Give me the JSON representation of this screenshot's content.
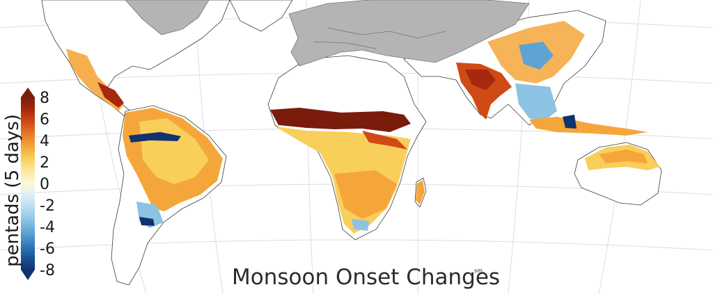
{
  "map": {
    "title": "Monsoon Onset Changes",
    "title_mark": "sm"
  },
  "legend": {
    "unit_label": "pentads (5 days)",
    "ticks": [
      "8",
      "6",
      "4",
      "2",
      "0",
      "-2",
      "-4",
      "-6",
      "-8"
    ],
    "tick_values": [
      8,
      6,
      4,
      2,
      0,
      -2,
      -4,
      -6,
      -8
    ],
    "colors": [
      "#7a1c0c",
      "#a8280f",
      "#cf4a14",
      "#e8782a",
      "#f5a63a",
      "#f8cf5a",
      "#fbe9a0",
      "#fdf7dc",
      "#dceff8",
      "#b5dcef",
      "#8cc3e3",
      "#5da3d3",
      "#3479bb",
      "#1c5498",
      "#10326e"
    ]
  },
  "colors": {
    "nodata_land": "#b4b4b4",
    "ocean": "#ffffff"
  }
}
